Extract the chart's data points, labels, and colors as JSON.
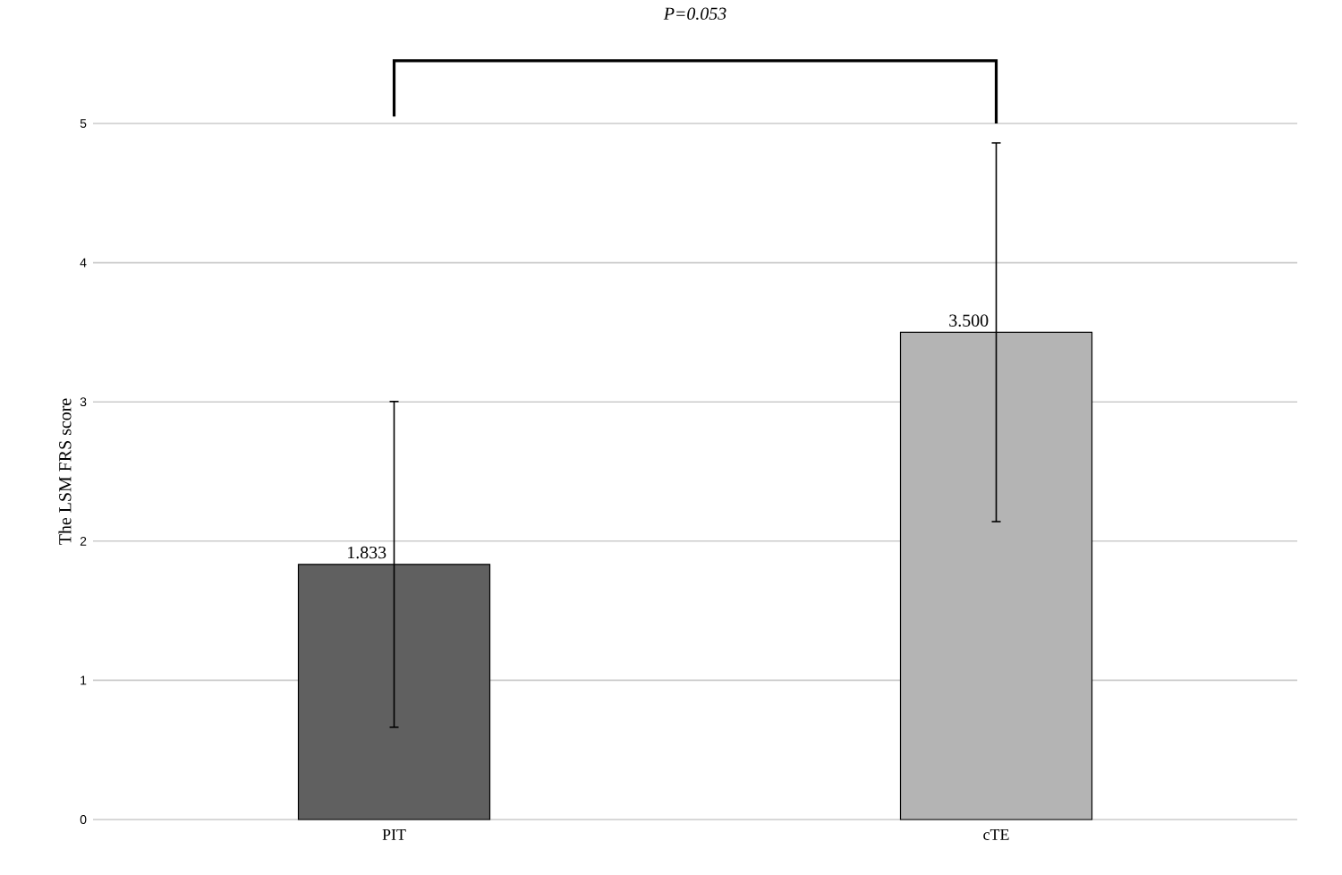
{
  "chart_data": {
    "type": "bar",
    "ylabel": "The LSM FRS score",
    "categories": [
      "PIT",
      "cTE"
    ],
    "values": [
      1.833,
      3.5
    ],
    "colors": [
      "#606060",
      "#b4b4b4"
    ],
    "errors": [
      1.17,
      1.36
    ],
    "value_labels": [
      "1.833",
      "3.500"
    ],
    "ylim": [
      0,
      5
    ],
    "yticks": [
      0,
      1,
      2,
      3,
      4,
      5
    ],
    "grid": "y",
    "annotations": [
      "P=0.053"
    ]
  }
}
